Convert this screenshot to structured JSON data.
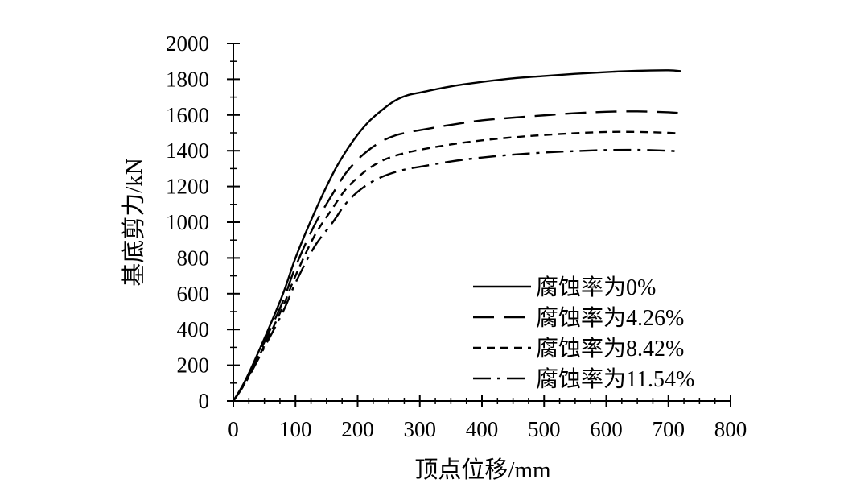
{
  "chart_data": {
    "type": "line",
    "title": "",
    "xlabel": "顶点位移/mm",
    "ylabel": "基底剪力/kN",
    "xlim": [
      0,
      800
    ],
    "ylim": [
      0,
      2000
    ],
    "xticks": [
      0,
      100,
      200,
      300,
      400,
      500,
      600,
      700,
      800
    ],
    "yticks": [
      0,
      200,
      400,
      600,
      800,
      1000,
      1200,
      1400,
      1600,
      1800,
      2000
    ],
    "grid": false,
    "legend_position": "bottom-right",
    "series": [
      {
        "name": "腐蚀率为0%",
        "dash": "solid",
        "color": "#000000",
        "x": [
          0,
          20,
          50,
          80,
          100,
          130,
          160,
          180,
          200,
          220,
          240,
          260,
          280,
          300,
          350,
          400,
          450,
          500,
          550,
          600,
          650,
          700,
          720
        ],
        "y": [
          0,
          120,
          350,
          600,
          800,
          1050,
          1270,
          1390,
          1490,
          1570,
          1630,
          1680,
          1710,
          1725,
          1760,
          1785,
          1805,
          1818,
          1830,
          1840,
          1847,
          1850,
          1845
        ]
      },
      {
        "name": "腐蚀率为4.26%",
        "dash": "long-dash",
        "color": "#000000",
        "x": [
          0,
          20,
          50,
          80,
          100,
          130,
          160,
          180,
          200,
          220,
          240,
          260,
          280,
          300,
          350,
          400,
          450,
          500,
          550,
          600,
          650,
          700,
          720
        ],
        "y": [
          0,
          115,
          330,
          560,
          750,
          980,
          1160,
          1270,
          1350,
          1410,
          1455,
          1485,
          1502,
          1515,
          1545,
          1570,
          1585,
          1598,
          1610,
          1618,
          1620,
          1615,
          1610
        ]
      },
      {
        "name": "腐蚀率为8.42%",
        "dash": "short-dash",
        "color": "#000000",
        "x": [
          0,
          20,
          50,
          80,
          100,
          130,
          160,
          180,
          200,
          220,
          240,
          260,
          280,
          300,
          350,
          400,
          450,
          500,
          550,
          600,
          650,
          700,
          720
        ],
        "y": [
          0,
          110,
          310,
          530,
          700,
          920,
          1080,
          1180,
          1250,
          1305,
          1345,
          1372,
          1390,
          1405,
          1435,
          1458,
          1475,
          1488,
          1498,
          1505,
          1505,
          1500,
          1495
        ]
      },
      {
        "name": "腐蚀率为11.54%",
        "dash": "dash-dot",
        "color": "#000000",
        "x": [
          0,
          20,
          50,
          80,
          100,
          130,
          160,
          180,
          200,
          220,
          240,
          260,
          280,
          300,
          350,
          400,
          450,
          500,
          550,
          600,
          650,
          700,
          720
        ],
        "y": [
          0,
          105,
          300,
          500,
          660,
          860,
          1000,
          1100,
          1170,
          1220,
          1255,
          1280,
          1298,
          1310,
          1340,
          1362,
          1378,
          1390,
          1398,
          1404,
          1405,
          1400,
          1395
        ]
      }
    ]
  }
}
